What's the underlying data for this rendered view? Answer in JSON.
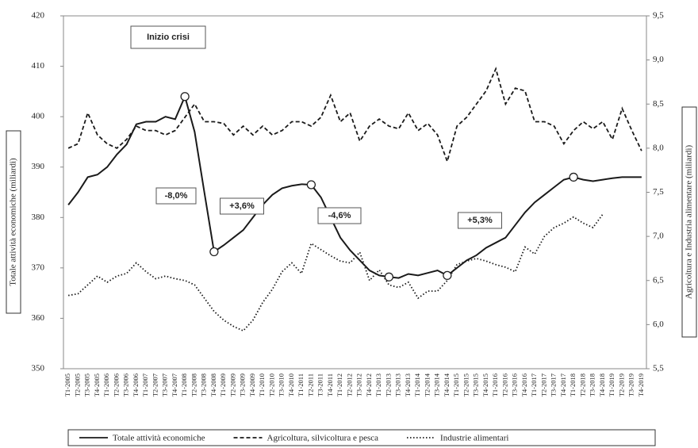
{
  "chart_data": {
    "type": "line",
    "y_label": "Totale attività economiche (miliardi)",
    "y2_label": "Agricoltura e Industria alimentare (miliardi)",
    "categories": [
      "T1-2005",
      "T2-2005",
      "T3-2005",
      "T4-2005",
      "T1-2006",
      "T2-2006",
      "T3-2006",
      "T4-2006",
      "T1-2007",
      "T2-2007",
      "T3-2007",
      "T4-2007",
      "T1-2008",
      "T2-2008",
      "T3-2008",
      "T4-2008",
      "T1-2009",
      "T2-2009",
      "T3-2009",
      "T4-2009",
      "T1-2010",
      "T2-2010",
      "T3-2010",
      "T4-2010",
      "T1-2011",
      "T2-2011",
      "T3-2011",
      "T4-2011",
      "T1-2012",
      "T2-2012",
      "T3-2012",
      "T4-2012",
      "T1-2013",
      "T2-2013",
      "T3-2013",
      "T4-2013",
      "T1-2014",
      "T2-2014",
      "T3-2014",
      "T4-2014",
      "T1-2015",
      "T2-2015",
      "T3-2015",
      "T4-2015",
      "T1-2016",
      "T2-2016",
      "T3-2016",
      "T4-2016",
      "T1-2017",
      "T2-2017",
      "T3-2017",
      "T4-2017",
      "T1-2018",
      "T2-2018",
      "T3-2018",
      "T4-2018",
      "T1-2019",
      "T2-2019",
      "T3-2019",
      "T4-2019"
    ],
    "series": [
      {
        "name": "Totale attività economiche",
        "color": "#1a1a1a",
        "dash": "solid",
        "values": [
          382.5,
          385,
          388,
          388.5,
          390,
          392.5,
          394.5,
          398.5,
          399,
          399,
          400,
          399.5,
          404,
          397,
          385,
          373.2,
          374.5,
          376,
          377.5,
          380,
          382.5,
          384.5,
          385.8,
          386.3,
          386.6,
          386.5,
          384,
          380,
          376,
          373.5,
          371.5,
          369.5,
          368.5,
          368.2,
          368,
          368.8,
          368.5,
          369,
          369.5,
          368.5,
          370,
          371.5,
          372.5,
          374,
          375,
          376,
          378.5,
          381,
          383,
          384.5,
          386,
          387.5,
          388,
          387.5,
          387.2,
          387.5,
          387.8,
          388,
          388,
          388
        ]
      },
      {
        "name": "Agricoltura, silvicoltura e pesca",
        "color": "#1a1a1a",
        "dash": "dashed",
        "axis": "y2",
        "values": [
          8.0,
          8.05,
          8.4,
          8.15,
          8.05,
          8.0,
          8.1,
          8.25,
          8.2,
          8.2,
          8.15,
          8.2,
          8.35,
          8.5,
          8.3,
          8.3,
          8.28,
          8.15,
          8.25,
          8.15,
          8.25,
          8.15,
          8.2,
          8.3,
          8.3,
          8.25,
          8.35,
          8.6,
          8.3,
          8.4,
          8.08,
          8.25,
          8.33,
          8.25,
          8.22,
          8.4,
          8.2,
          8.28,
          8.15,
          7.85,
          8.25,
          8.35,
          8.5,
          8.65,
          8.9,
          8.5,
          8.68,
          8.65,
          8.3,
          8.3,
          8.25,
          8.05,
          8.2,
          8.3,
          8.22,
          8.3,
          8.1,
          8.45,
          8.2,
          7.97
        ]
      },
      {
        "name": "Industrie alimentari",
        "color": "#1a1a1a",
        "dash": "dotted",
        "axis": "y2",
        "values": [
          6.33,
          6.35,
          6.45,
          6.55,
          6.48,
          6.55,
          6.58,
          6.7,
          6.6,
          6.52,
          6.55,
          6.52,
          6.5,
          6.45,
          6.3,
          6.15,
          6.05,
          5.98,
          5.93,
          6.05,
          6.25,
          6.4,
          6.6,
          6.7,
          6.58,
          6.92,
          6.85,
          6.78,
          6.72,
          6.7,
          6.82,
          6.5,
          6.62,
          6.45,
          6.42,
          6.48,
          6.3,
          6.38,
          6.38,
          6.5,
          6.68,
          6.72,
          6.75,
          6.72,
          6.68,
          6.65,
          6.6,
          6.88,
          6.8,
          7.0,
          7.1,
          7.15,
          7.22,
          7.15,
          7.1,
          7.25,
          null,
          null,
          null,
          null
        ]
      }
    ],
    "ylim": [
      350,
      420
    ],
    "yticks": [
      350,
      360,
      370,
      380,
      390,
      400,
      410,
      420
    ],
    "y2lim": [
      5.5,
      9.5
    ],
    "y2ticks": [
      {
        "value": 5.5,
        "label": "5,5"
      },
      {
        "value": 6.0,
        "label": "6,0"
      },
      {
        "value": 6.5,
        "label": "6,5"
      },
      {
        "value": 7.0,
        "label": "7,0"
      },
      {
        "value": 7.5,
        "label": "7,5"
      },
      {
        "value": 8.0,
        "label": "8,0"
      },
      {
        "value": 8.5,
        "label": "8,5"
      },
      {
        "value": 9.0,
        "label": "9,0"
      },
      {
        "value": 9.5,
        "label": "9,5"
      }
    ],
    "annotations": [
      "Inizio crisi",
      "-8,0%",
      "+3,6%",
      "-4,6%",
      "+5,3%"
    ],
    "legend": "bottom"
  }
}
